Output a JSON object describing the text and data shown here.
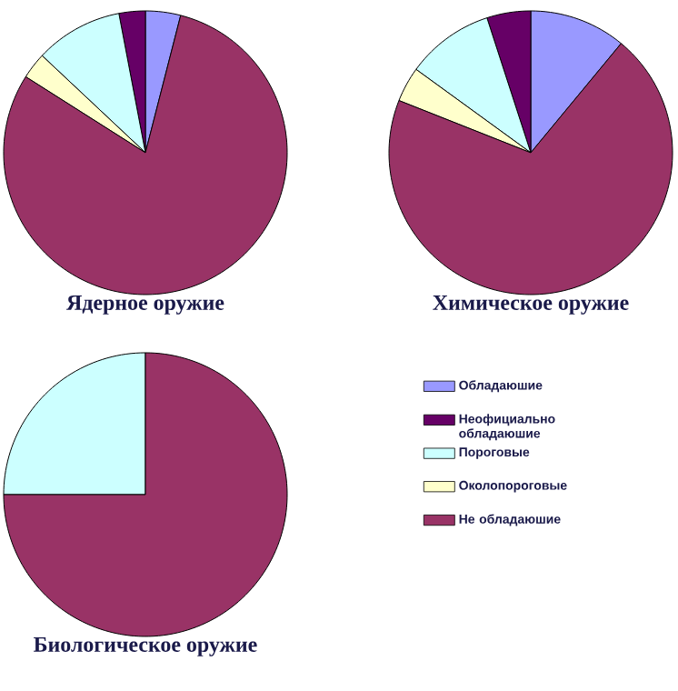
{
  "chart_data": [
    {
      "type": "pie",
      "title": "Ядерное оружие",
      "categories": [
        null,
        null,
        null,
        null,
        null
      ],
      "values": [
        4,
        3,
        10,
        3,
        80
      ],
      "colors": [
        "#9999ff",
        "#660066",
        "#ccffff",
        "#ffffcc",
        "#993366"
      ]
    },
    {
      "type": "pie",
      "title": "Химическое оружие",
      "categories": [
        null,
        null,
        null,
        null,
        null
      ],
      "values": [
        11,
        5,
        10,
        4,
        70
      ],
      "colors": [
        "#9999ff",
        "#660066",
        "#ccffff",
        "#ffffcc",
        "#993366"
      ]
    },
    {
      "type": "pie",
      "title": "Биологическое оружие",
      "categories": [
        "Обладаюшие",
        "Неофициально обладаюшие",
        "Пороговые",
        "Околопороговые",
        "Не обладаюшие"
      ],
      "values": [
        0,
        0,
        25,
        0,
        75
      ],
      "colors": [
        "#9999ff",
        "#660066",
        "#ccffff",
        "#ffffcc",
        "#993366"
      ],
      "legend": "right"
    }
  ]
}
